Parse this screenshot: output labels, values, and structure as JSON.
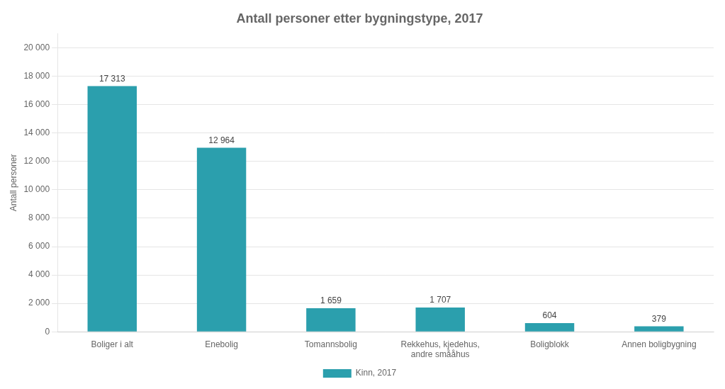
{
  "chart_data": {
    "type": "bar",
    "title": "Antall personer etter bygningstype, 2017",
    "categories": [
      "Boliger i alt",
      "Enebolig",
      "Tomannsbolig",
      "Rekkehus, kjedehus,\nandre smååhus",
      "Boligblokk",
      "Annen boligbygning"
    ],
    "series": [
      {
        "name": "Kinn, 2017",
        "color": "#2b9fad",
        "values": [
          17313,
          12964,
          1659,
          1707,
          604,
          379
        ],
        "value_labels": [
          "17 313",
          "12 964",
          "1 659",
          "1 707",
          "604",
          "379"
        ]
      }
    ],
    "ylabel": "Antall personer",
    "ylim": [
      0,
      21000
    ],
    "yticks": [
      0,
      {
        "value": 2000,
        "label": "2 000"
      },
      {
        "value": 4000,
        "label": "4 000"
      },
      {
        "value": 6000,
        "label": "6 000"
      },
      {
        "value": 8000,
        "label": "8 000"
      },
      {
        "value": 10000,
        "label": "10 000"
      },
      {
        "value": 12000,
        "label": "12 000"
      },
      {
        "value": 14000,
        "label": "14 000"
      },
      {
        "value": 16000,
        "label": "16 000"
      },
      {
        "value": 18000,
        "label": "18 000"
      },
      {
        "value": 20000,
        "label": "20 000"
      }
    ],
    "grid": true,
    "legend": "bottom",
    "data_labels": true
  }
}
